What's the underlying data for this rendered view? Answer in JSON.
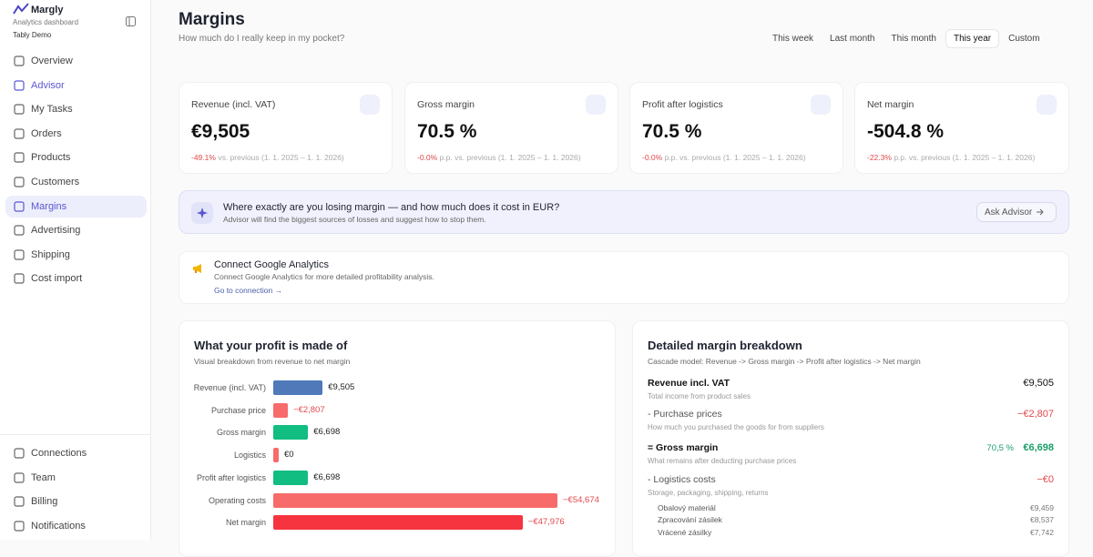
{
  "sidebar": {
    "brand": "Margly",
    "tagline": "Analytics dashboard",
    "account": "Tably Demo",
    "nav": [
      "Overview",
      "Advisor",
      "My Tasks",
      "Orders",
      "Products",
      "Customers",
      "Margins",
      "Advertising",
      "Shipping",
      "Cost import"
    ],
    "bottom_nav": [
      "Connections",
      "Team",
      "Billing",
      "Notifications"
    ]
  },
  "header": {
    "title": "Margins",
    "subtitle": "How much do I really keep in my pocket?",
    "periods": [
      "This week",
      "Last month",
      "This month",
      "This year",
      "Custom"
    ]
  },
  "kpis": [
    {
      "label": "Revenue (incl. VAT)",
      "value": "€9,505",
      "change": "-49.1%",
      "note": "vs. previous (1. 1. 2025 – 1. 1. 2026)"
    },
    {
      "label": "Gross margin",
      "value": "70.5 %",
      "change": "-0.0%",
      "note": "p.p. vs. previous (1. 1. 2025 – 1. 1. 2026)"
    },
    {
      "label": "Profit after logistics",
      "value": "70.5 %",
      "change": "-0.0%",
      "note": "p.p. vs. previous (1. 1. 2025 – 1. 1. 2026)"
    },
    {
      "label": "Net margin",
      "value": "-504.8 %",
      "change": "-22.3%",
      "note": "p.p. vs. previous (1. 1. 2025 – 1. 1. 2026)"
    }
  ],
  "advisor_banner": {
    "title": "Where exactly are you losing margin — and how much does it cost in EUR?",
    "text": "Advisor will find the biggest sources of losses and suggest how to stop them.",
    "button": "Ask Advisor"
  },
  "ga_card": {
    "title": "Connect Google Analytics",
    "text": "Connect Google Analytics for more detailed profitability analysis.",
    "link": "Go to connection →"
  },
  "profit_chart": {
    "type": "bar",
    "title": "What your profit is made of",
    "subtitle": "Visual breakdown from revenue to net margin",
    "categories": [
      "Revenue (incl. VAT)",
      "Purchase price",
      "Gross margin",
      "Logistics",
      "Profit after logistics",
      "Operating costs",
      "Net margin"
    ],
    "values": [
      9505,
      -2807,
      6698,
      0,
      6698,
      -54674,
      -47976
    ],
    "value_labels": [
      "€9,505",
      "−€2,807",
      "€6,698",
      "€0",
      "€6,698",
      "−€54,674",
      "−€47,976"
    ],
    "colors": [
      "#4f79b9",
      "#f76b6b",
      "#12bd82",
      "#f76b6b",
      "#12bd82",
      "#f76b6b",
      "#f5343f"
    ]
  },
  "breakdown": {
    "title": "Detailed margin breakdown",
    "subtitle": "Cascade model: Revenue -> Gross margin -> Profit after logistics -> Net margin",
    "rows": [
      {
        "label": "Revenue incl. VAT",
        "desc": "Total income from product sales",
        "value": "€9,505"
      },
      {
        "label": "- Purchase prices",
        "desc": "How much you purchased the goods for from suppliers",
        "value": "−€2,807"
      },
      {
        "label": "= Gross margin",
        "desc": "What remains after deducting purchase prices",
        "pct": "70,5 %",
        "value": "€6,698"
      },
      {
        "label": "- Logistics costs",
        "desc": "Storage, packaging, shipping, returns",
        "value": "−€0"
      }
    ],
    "subrows": [
      {
        "label": "Obalový materiál",
        "value": "€9,459"
      },
      {
        "label": "Zpracování zásilek",
        "value": "€8,537"
      },
      {
        "label": "Vrácené zásilky",
        "value": "€7,742"
      }
    ]
  }
}
